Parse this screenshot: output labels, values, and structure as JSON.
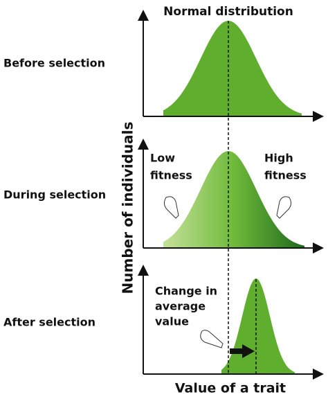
{
  "title": "Normal distribution",
  "panels": [
    {
      "label": "Before selection"
    },
    {
      "label": "During selection",
      "left_note": [
        "Low",
        "fitness"
      ],
      "right_note": [
        "High",
        "fitness"
      ]
    },
    {
      "label": "After selection",
      "note": [
        "Change in",
        "average",
        "value"
      ]
    }
  ],
  "y_axis_label": "Number of individuals",
  "x_axis_label": "Value of a trait"
}
